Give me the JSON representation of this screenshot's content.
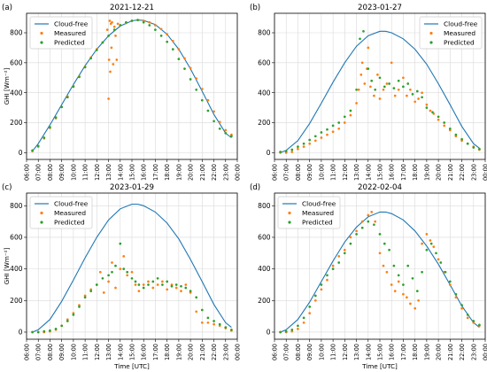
{
  "chart_data": [
    {
      "type": "line",
      "panel_label": "(a)",
      "title": "2021-12-21",
      "ylabel": "GHI [Wm⁻²]",
      "xlabel": "",
      "x_ticks": [
        "06:00",
        "07:00",
        "08:00",
        "09:00",
        "10:00",
        "11:00",
        "12:00",
        "13:00",
        "14:00",
        "15:00",
        "16:00",
        "17:00",
        "18:00",
        "19:00",
        "20:00",
        "21:00",
        "22:00",
        "23:00",
        "00:00"
      ],
      "xlim": [
        6,
        24
      ],
      "ylim": [
        -45,
        930
      ],
      "y_ticks": [
        0,
        200,
        400,
        600,
        800
      ],
      "legend": [
        "Cloud-free",
        "Measured",
        "Predicted"
      ],
      "legend_position": "top-left",
      "grid": true,
      "series": [
        {
          "name": "Cloud-free",
          "kind": "line",
          "color": "#1f77b4",
          "x": [
            6.5,
            7,
            8,
            9,
            10,
            11,
            12,
            13,
            14,
            15,
            15.5,
            16,
            17,
            18,
            19,
            20,
            21,
            22,
            23,
            23.5
          ],
          "y": [
            10,
            60,
            185,
            320,
            455,
            580,
            690,
            780,
            845,
            880,
            885,
            882,
            855,
            790,
            690,
            560,
            410,
            255,
            130,
            100
          ]
        },
        {
          "name": "Measured",
          "kind": "scatter",
          "color": "#ff7f0e",
          "x": [
            6.5,
            7,
            7.5,
            8,
            8.5,
            9,
            9.5,
            10,
            10.5,
            11,
            11.5,
            12,
            12.5,
            12.9,
            13.0,
            13.05,
            13.1,
            13.15,
            13.2,
            13.25,
            13.3,
            13.4,
            13.5,
            13.6,
            13.7,
            13.8,
            14,
            14.5,
            15,
            15.5,
            16,
            16.5,
            17,
            17.5,
            18,
            18.5,
            19,
            19.5,
            20,
            20.5,
            21,
            21.5,
            22,
            22.5,
            23,
            23.5
          ],
          "y": [
            10,
            40,
            95,
            165,
            230,
            305,
            375,
            445,
            510,
            575,
            635,
            690,
            735,
            820,
            360,
            620,
            880,
            540,
            860,
            700,
            870,
            590,
            840,
            780,
            620,
            860,
            850,
            865,
            880,
            885,
            880,
            870,
            850,
            825,
            790,
            745,
            690,
            630,
            565,
            495,
            425,
            350,
            275,
            205,
            150,
            120
          ]
        },
        {
          "name": "Predicted",
          "kind": "scatter",
          "color": "#2ca02c",
          "x": [
            6.5,
            7,
            7.5,
            8,
            8.5,
            9,
            9.5,
            10,
            10.5,
            11,
            11.5,
            12,
            12.5,
            13,
            13.5,
            14,
            14.5,
            15,
            15.5,
            16,
            16.5,
            17,
            17.5,
            18,
            18.5,
            19,
            19.5,
            20,
            20.5,
            21,
            21.5,
            22,
            22.5,
            23,
            23.5
          ],
          "y": [
            15,
            45,
            100,
            170,
            235,
            305,
            370,
            440,
            505,
            570,
            630,
            685,
            735,
            780,
            820,
            850,
            870,
            880,
            885,
            870,
            850,
            820,
            780,
            740,
            690,
            625,
            560,
            490,
            420,
            350,
            280,
            210,
            160,
            130,
            110
          ]
        }
      ]
    },
    {
      "type": "line",
      "panel_label": "(b)",
      "title": "2023-01-27",
      "ylabel": "",
      "xlabel": "",
      "x_ticks": [
        "06:00",
        "07:00",
        "08:00",
        "09:00",
        "10:00",
        "11:00",
        "12:00",
        "13:00",
        "14:00",
        "15:00",
        "16:00",
        "17:00",
        "18:00",
        "19:00",
        "20:00",
        "21:00",
        "22:00",
        "23:00",
        "00:00"
      ],
      "xlim": [
        6,
        24
      ],
      "ylim": [
        -45,
        930
      ],
      "y_ticks": [
        0,
        200,
        400,
        600,
        800
      ],
      "legend": [
        "Cloud-free",
        "Measured",
        "Predicted"
      ],
      "legend_position": "top-right",
      "grid": true,
      "series": [
        {
          "name": "Cloud-free",
          "kind": "line",
          "color": "#1f77b4",
          "x": [
            6.5,
            7,
            8,
            9,
            10,
            11,
            12,
            13,
            14,
            15,
            15.5,
            16,
            17,
            18,
            19,
            20,
            21,
            22,
            23,
            23.5
          ],
          "y": [
            0,
            15,
            80,
            195,
            330,
            470,
            600,
            710,
            780,
            810,
            810,
            800,
            760,
            690,
            590,
            460,
            320,
            175,
            60,
            30
          ]
        },
        {
          "name": "Measured",
          "kind": "scatter",
          "color": "#ff7f0e",
          "x": [
            6.5,
            7,
            7.5,
            8,
            8.5,
            9,
            9.5,
            10,
            10.5,
            11,
            11.5,
            12,
            12.5,
            13,
            13.2,
            13.4,
            13.5,
            13.7,
            13.9,
            14,
            14.2,
            14.5,
            14.8,
            15,
            15.3,
            15.6,
            16,
            16.3,
            16.6,
            17,
            17.3,
            17.6,
            18,
            18.3,
            18.6,
            19,
            19.3,
            19.6,
            20,
            20.5,
            21,
            21.5,
            22,
            22.5,
            23,
            23.5
          ],
          "y": [
            0,
            0,
            5,
            25,
            40,
            60,
            80,
            100,
            120,
            140,
            160,
            200,
            250,
            330,
            420,
            520,
            600,
            460,
            560,
            700,
            440,
            380,
            520,
            360,
            420,
            460,
            600,
            380,
            420,
            500,
            380,
            420,
            340,
            360,
            400,
            320,
            280,
            260,
            220,
            180,
            150,
            110,
            80,
            60,
            40,
            20
          ]
        },
        {
          "name": "Predicted",
          "kind": "scatter",
          "color": "#2ca02c",
          "x": [
            6.5,
            7,
            7.5,
            8,
            8.5,
            9,
            9.5,
            10,
            10.5,
            11,
            11.5,
            12,
            12.5,
            13,
            13.3,
            13.6,
            14,
            14.3,
            14.6,
            15,
            15.4,
            15.8,
            16.2,
            16.6,
            17,
            17.4,
            17.8,
            18.2,
            18.6,
            19,
            19.5,
            20,
            20.5,
            21,
            21.5,
            22,
            22.5,
            23,
            23.5
          ],
          "y": [
            5,
            10,
            20,
            40,
            60,
            85,
            110,
            135,
            155,
            180,
            200,
            240,
            280,
            420,
            760,
            810,
            560,
            480,
            420,
            500,
            440,
            460,
            430,
            480,
            440,
            460,
            390,
            410,
            370,
            300,
            270,
            240,
            200,
            160,
            120,
            90,
            60,
            35,
            25
          ]
        }
      ]
    },
    {
      "type": "line",
      "panel_label": "(c)",
      "title": "2023-01-29",
      "ylabel": "GHI [Wm⁻²]",
      "xlabel": "Time [UTC]",
      "x_ticks": [
        "06:00",
        "07:00",
        "08:00",
        "09:00",
        "10:00",
        "11:00",
        "12:00",
        "13:00",
        "14:00",
        "15:00",
        "16:00",
        "17:00",
        "18:00",
        "19:00",
        "20:00",
        "21:00",
        "22:00",
        "23:00",
        "00:00"
      ],
      "xlim": [
        6,
        24
      ],
      "ylim": [
        -45,
        880
      ],
      "y_ticks": [
        0,
        200,
        400,
        600,
        800
      ],
      "legend": [
        "Cloud-free",
        "Measured",
        "Predicted"
      ],
      "legend_position": "top-left",
      "grid": true,
      "series": [
        {
          "name": "Cloud-free",
          "kind": "line",
          "color": "#1f77b4",
          "x": [
            6.5,
            7,
            8,
            9,
            10,
            11,
            12,
            13,
            14,
            15,
            15.5,
            16,
            17,
            18,
            19,
            20,
            21,
            22,
            23,
            23.5
          ],
          "y": [
            0,
            15,
            80,
            195,
            330,
            470,
            600,
            710,
            780,
            810,
            810,
            800,
            760,
            690,
            590,
            460,
            320,
            175,
            60,
            30
          ]
        },
        {
          "name": "Measured",
          "kind": "scatter",
          "color": "#ff7f0e",
          "x": [
            6.5,
            7,
            7.5,
            8,
            8.5,
            9,
            9.5,
            10,
            10.5,
            11,
            11.5,
            12,
            12.3,
            12.6,
            13,
            13.3,
            13.6,
            14,
            14.3,
            14.6,
            15,
            15.3,
            15.6,
            16,
            16.4,
            16.8,
            17.2,
            17.6,
            18,
            18.4,
            18.8,
            19.2,
            19.6,
            20,
            20.5,
            21,
            21.5,
            22,
            22.5,
            23,
            23.5
          ],
          "y": [
            0,
            0,
            0,
            5,
            15,
            40,
            80,
            120,
            170,
            230,
            270,
            300,
            380,
            250,
            320,
            440,
            280,
            400,
            480,
            360,
            380,
            300,
            260,
            300,
            320,
            280,
            300,
            320,
            270,
            300,
            280,
            260,
            300,
            250,
            130,
            60,
            60,
            50,
            40,
            25,
            10
          ]
        },
        {
          "name": "Predicted",
          "kind": "scatter",
          "color": "#2ca02c",
          "x": [
            6.5,
            7,
            7.5,
            8,
            8.5,
            9,
            9.5,
            10,
            10.5,
            11,
            11.5,
            12,
            12.5,
            13,
            13.3,
            13.6,
            14,
            14.3,
            14.6,
            15,
            15.3,
            15.6,
            16,
            16.4,
            16.8,
            17.2,
            17.6,
            18,
            18.4,
            18.8,
            19.2,
            19.6,
            20,
            20.5,
            21,
            21.5,
            22,
            22.5,
            23,
            23.5
          ],
          "y": [
            0,
            0,
            5,
            10,
            20,
            40,
            70,
            110,
            160,
            220,
            260,
            300,
            340,
            360,
            380,
            420,
            560,
            400,
            380,
            340,
            320,
            300,
            280,
            300,
            320,
            340,
            300,
            320,
            290,
            300,
            290,
            280,
            260,
            220,
            140,
            90,
            70,
            50,
            30,
            15
          ]
        }
      ]
    },
    {
      "type": "line",
      "panel_label": "(d)",
      "title": "2022-02-04",
      "ylabel": "",
      "xlabel": "Time [UTC]",
      "x_ticks": [
        "06:00",
        "07:00",
        "08:00",
        "09:00",
        "10:00",
        "11:00",
        "12:00",
        "13:00",
        "14:00",
        "15:00",
        "16:00",
        "17:00",
        "18:00",
        "19:00",
        "20:00",
        "21:00",
        "22:00",
        "23:00",
        "00:00"
      ],
      "xlim": [
        6,
        24
      ],
      "ylim": [
        -45,
        880
      ],
      "y_ticks": [
        0,
        200,
        400,
        600,
        800
      ],
      "legend": [
        "Cloud-free",
        "Measured",
        "Predicted"
      ],
      "legend_position": "top-left",
      "grid": true,
      "series": [
        {
          "name": "Cloud-free",
          "kind": "line",
          "color": "#1f77b4",
          "x": [
            6.5,
            7,
            8,
            9,
            10,
            11,
            12,
            13,
            14,
            15,
            15.5,
            16,
            17,
            18,
            19,
            20,
            21,
            22,
            23,
            23.5
          ],
          "y": [
            0,
            15,
            80,
            190,
            320,
            450,
            570,
            665,
            730,
            760,
            760,
            750,
            710,
            640,
            545,
            430,
            300,
            165,
            60,
            30
          ]
        },
        {
          "name": "Measured",
          "kind": "scatter",
          "color": "#ff7f0e",
          "x": [
            6.5,
            7,
            7.5,
            8,
            8.5,
            9,
            9.5,
            10,
            10.5,
            11,
            11.5,
            12,
            12.5,
            13,
            13.5,
            14,
            14.3,
            14.6,
            15,
            15.3,
            15.6,
            16,
            16.3,
            16.6,
            17,
            17.3,
            17.6,
            18,
            18.3,
            18.6,
            19,
            19.3,
            19.6,
            20,
            20.5,
            21,
            21.5,
            22,
            22.5,
            23,
            23.5
          ],
          "y": [
            0,
            0,
            5,
            20,
            60,
            120,
            200,
            270,
            330,
            420,
            480,
            520,
            600,
            640,
            700,
            740,
            760,
            700,
            500,
            420,
            380,
            300,
            260,
            320,
            240,
            220,
            180,
            150,
            200,
            560,
            620,
            580,
            540,
            460,
            380,
            300,
            220,
            150,
            90,
            60,
            40
          ]
        },
        {
          "name": "Predicted",
          "kind": "scatter",
          "color": "#2ca02c",
          "x": [
            6.5,
            7,
            7.5,
            8,
            8.5,
            9,
            9.5,
            10,
            10.5,
            11,
            11.5,
            12,
            12.5,
            13,
            13.5,
            14,
            14.5,
            15,
            15.4,
            15.8,
            16.2,
            16.6,
            17,
            17.4,
            17.8,
            18.2,
            18.6,
            19,
            19.4,
            19.8,
            20.2,
            20.6,
            21,
            21.5,
            22,
            22.5,
            23,
            23.5
          ],
          "y": [
            0,
            5,
            15,
            40,
            90,
            160,
            230,
            300,
            360,
            400,
            440,
            500,
            560,
            620,
            660,
            700,
            680,
            620,
            560,
            520,
            420,
            360,
            300,
            420,
            340,
            260,
            380,
            520,
            560,
            500,
            440,
            380,
            320,
            240,
            170,
            110,
            70,
            45
          ]
        }
      ]
    }
  ]
}
